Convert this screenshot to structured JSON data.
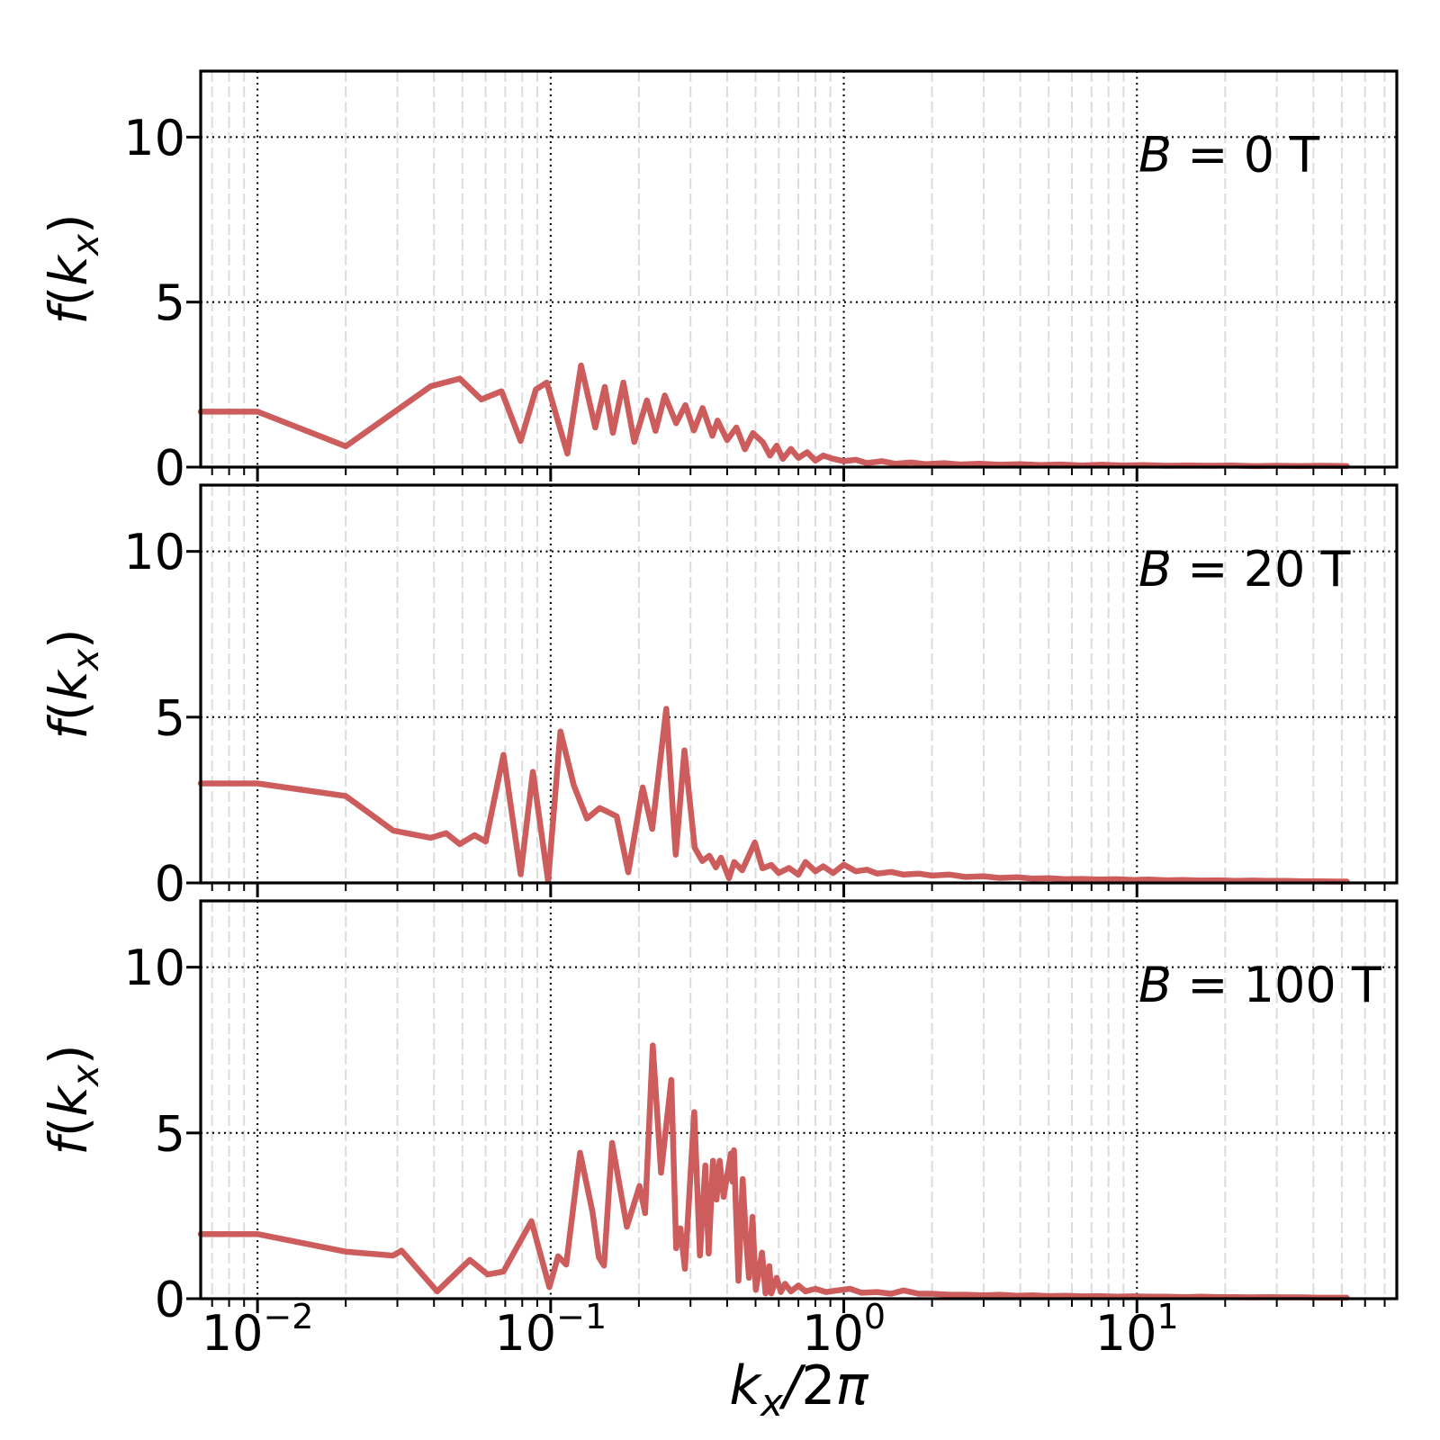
{
  "figure": {
    "background": "#ffffff",
    "line_color": "#cd5c5c",
    "major_grid_color": "#000000",
    "minor_grid_color": "#dcdcdc",
    "spine_color": "#000000",
    "text_color": "#000000"
  },
  "axes": {
    "xlabel": "k_x/2π",
    "xlabel_math": [
      {
        "t": "k",
        "i": true
      },
      {
        "t": "x",
        "i": true,
        "sub": true
      },
      {
        "t": "/",
        "i": true
      },
      {
        "t": "2",
        "i": false
      },
      {
        "t": "π",
        "i": true
      }
    ],
    "ylabel": "f(k_x)",
    "ylabel_math": [
      {
        "t": "f",
        "i": true
      },
      {
        "t": "(",
        "i": false
      },
      {
        "t": "k",
        "i": true
      },
      {
        "t": "x",
        "i": true,
        "sub": true
      },
      {
        "t": ")",
        "i": false
      }
    ],
    "x_scale": "log",
    "xlim": [
      0.0064,
      77
    ],
    "ylim": [
      0,
      12
    ],
    "x_tick_exponents": [
      -2,
      -1,
      0,
      1
    ],
    "x_tick_labels": [
      "10⁻²",
      "10⁻¹",
      "10⁰",
      "10¹"
    ],
    "y_ticks": [
      0,
      5,
      10
    ]
  },
  "panels": [
    {
      "label": "B = 0 T",
      "label_math": [
        {
          "t": "B",
          "i": true
        },
        {
          "t": " = 0 T",
          "i": false
        }
      ]
    },
    {
      "label": "B = 20 T",
      "label_math": [
        {
          "t": "B",
          "i": true
        },
        {
          "t": " = 20 T",
          "i": false
        }
      ]
    },
    {
      "label": "B = 100 T",
      "label_math": [
        {
          "t": "B",
          "i": true
        },
        {
          "t": " = 100 T",
          "i": false
        }
      ]
    }
  ],
  "chart_data": {
    "type": "line",
    "title": "",
    "xlabel": "k_x/2π",
    "ylabel": "f(k_x)",
    "x_scale": "log",
    "xlim": [
      0.0064,
      77
    ],
    "ylim": [
      0,
      12
    ],
    "y_ticks": [
      0,
      5,
      10
    ],
    "x_major_ticks": [
      0.01,
      0.1,
      1,
      10
    ],
    "grid": {
      "major": "black dotted",
      "minor": "light gray dashed vertical"
    },
    "legend_position": "none",
    "series": [
      {
        "name": "B = 0 T",
        "color": "#cd5c5c",
        "points": [
          [
            0.0064,
            1.68
          ],
          [
            0.01,
            1.68
          ],
          [
            0.02,
            0.63
          ],
          [
            0.039,
            2.45
          ],
          [
            0.049,
            2.68
          ],
          [
            0.058,
            2.05
          ],
          [
            0.068,
            2.3
          ],
          [
            0.079,
            0.79
          ],
          [
            0.089,
            2.35
          ],
          [
            0.097,
            2.56
          ],
          [
            0.114,
            0.41
          ],
          [
            0.127,
            3.08
          ],
          [
            0.142,
            1.2
          ],
          [
            0.153,
            2.43
          ],
          [
            0.163,
            1.04
          ],
          [
            0.177,
            2.56
          ],
          [
            0.193,
            0.76
          ],
          [
            0.213,
            2.02
          ],
          [
            0.228,
            1.1
          ],
          [
            0.245,
            2.17
          ],
          [
            0.268,
            1.33
          ],
          [
            0.288,
            1.88
          ],
          [
            0.308,
            1.11
          ],
          [
            0.33,
            1.79
          ],
          [
            0.356,
            0.95
          ],
          [
            0.371,
            1.41
          ],
          [
            0.4,
            0.82
          ],
          [
            0.43,
            1.2
          ],
          [
            0.46,
            0.54
          ],
          [
            0.49,
            1.03
          ],
          [
            0.53,
            0.75
          ],
          [
            0.56,
            0.35
          ],
          [
            0.59,
            0.65
          ],
          [
            0.62,
            0.25
          ],
          [
            0.66,
            0.55
          ],
          [
            0.7,
            0.28
          ],
          [
            0.75,
            0.45
          ],
          [
            0.8,
            0.2
          ],
          [
            0.85,
            0.35
          ],
          [
            0.92,
            0.25
          ],
          [
            1.0,
            0.18
          ],
          [
            1.1,
            0.22
          ],
          [
            1.2,
            0.12
          ],
          [
            1.35,
            0.18
          ],
          [
            1.5,
            0.1
          ],
          [
            1.7,
            0.14
          ],
          [
            1.9,
            0.09
          ],
          [
            2.2,
            0.12
          ],
          [
            2.5,
            0.08
          ],
          [
            2.9,
            0.1
          ],
          [
            3.4,
            0.07
          ],
          [
            4.0,
            0.09
          ],
          [
            4.7,
            0.06
          ],
          [
            5.5,
            0.08
          ],
          [
            6.5,
            0.05
          ],
          [
            7.6,
            0.07
          ],
          [
            9.0,
            0.05
          ],
          [
            10.5,
            0.06
          ],
          [
            12.5,
            0.04
          ],
          [
            15,
            0.05
          ],
          [
            18,
            0.04
          ],
          [
            21,
            0.05
          ],
          [
            25,
            0.03
          ],
          [
            30,
            0.04
          ],
          [
            36,
            0.03
          ],
          [
            43,
            0.04
          ],
          [
            52,
            0.03
          ]
        ]
      },
      {
        "name": "B = 20 T",
        "color": "#cd5c5c",
        "points": [
          [
            0.0064,
            3.0
          ],
          [
            0.01,
            3.0
          ],
          [
            0.02,
            2.62
          ],
          [
            0.029,
            1.58
          ],
          [
            0.039,
            1.36
          ],
          [
            0.044,
            1.5
          ],
          [
            0.049,
            1.17
          ],
          [
            0.055,
            1.44
          ],
          [
            0.06,
            1.25
          ],
          [
            0.069,
            3.86
          ],
          [
            0.079,
            0.26
          ],
          [
            0.087,
            3.35
          ],
          [
            0.098,
            0.06
          ],
          [
            0.108,
            4.57
          ],
          [
            0.12,
            2.94
          ],
          [
            0.133,
            1.94
          ],
          [
            0.147,
            2.26
          ],
          [
            0.168,
            2.01
          ],
          [
            0.184,
            0.32
          ],
          [
            0.206,
            2.88
          ],
          [
            0.222,
            1.63
          ],
          [
            0.248,
            5.25
          ],
          [
            0.267,
            0.85
          ],
          [
            0.286,
            4.0
          ],
          [
            0.31,
            1.06
          ],
          [
            0.329,
            0.66
          ],
          [
            0.348,
            0.82
          ],
          [
            0.366,
            0.47
          ],
          [
            0.381,
            0.76
          ],
          [
            0.406,
            0.14
          ],
          [
            0.423,
            0.63
          ],
          [
            0.45,
            0.38
          ],
          [
            0.497,
            1.22
          ],
          [
            0.528,
            0.44
          ],
          [
            0.566,
            0.54
          ],
          [
            0.6,
            0.3
          ],
          [
            0.65,
            0.45
          ],
          [
            0.7,
            0.25
          ],
          [
            0.74,
            0.63
          ],
          [
            0.8,
            0.35
          ],
          [
            0.85,
            0.5
          ],
          [
            0.92,
            0.3
          ],
          [
            1.0,
            0.55
          ],
          [
            1.1,
            0.35
          ],
          [
            1.2,
            0.4
          ],
          [
            1.3,
            0.28
          ],
          [
            1.45,
            0.33
          ],
          [
            1.6,
            0.25
          ],
          [
            1.8,
            0.28
          ],
          [
            2.0,
            0.22
          ],
          [
            2.3,
            0.25
          ],
          [
            2.6,
            0.18
          ],
          [
            3.0,
            0.2
          ],
          [
            3.4,
            0.15
          ],
          [
            3.9,
            0.17
          ],
          [
            4.4,
            0.13
          ],
          [
            5.0,
            0.14
          ],
          [
            5.7,
            0.11
          ],
          [
            6.5,
            0.12
          ],
          [
            7.4,
            0.1
          ],
          [
            8.5,
            0.11
          ],
          [
            9.7,
            0.09
          ],
          [
            11,
            0.1
          ],
          [
            12.6,
            0.08
          ],
          [
            14.4,
            0.09
          ],
          [
            16.5,
            0.07
          ],
          [
            19,
            0.08
          ],
          [
            21.6,
            0.06
          ],
          [
            24.7,
            0.07
          ],
          [
            28,
            0.06
          ],
          [
            32,
            0.06
          ],
          [
            37,
            0.05
          ],
          [
            42,
            0.05
          ],
          [
            48,
            0.04
          ],
          [
            52,
            0.04
          ]
        ]
      },
      {
        "name": "B = 100 T",
        "color": "#cd5c5c",
        "points": [
          [
            0.0064,
            1.95
          ],
          [
            0.01,
            1.95
          ],
          [
            0.02,
            1.42
          ],
          [
            0.029,
            1.3
          ],
          [
            0.031,
            1.45
          ],
          [
            0.041,
            0.22
          ],
          [
            0.053,
            1.17
          ],
          [
            0.061,
            0.73
          ],
          [
            0.069,
            0.82
          ],
          [
            0.086,
            2.34
          ],
          [
            0.099,
            0.35
          ],
          [
            0.106,
            1.28
          ],
          [
            0.113,
            1.03
          ],
          [
            0.126,
            4.4
          ],
          [
            0.139,
            2.61
          ],
          [
            0.146,
            1.25
          ],
          [
            0.152,
            1.0
          ],
          [
            0.162,
            4.7
          ],
          [
            0.182,
            2.17
          ],
          [
            0.201,
            3.4
          ],
          [
            0.21,
            2.58
          ],
          [
            0.223,
            7.64
          ],
          [
            0.238,
            3.8
          ],
          [
            0.258,
            6.6
          ],
          [
            0.268,
            1.52
          ],
          [
            0.277,
            2.12
          ],
          [
            0.287,
            0.9
          ],
          [
            0.309,
            5.63
          ],
          [
            0.323,
            1.3
          ],
          [
            0.337,
            4.02
          ],
          [
            0.346,
            1.36
          ],
          [
            0.358,
            4.16
          ],
          [
            0.368,
            2.99
          ],
          [
            0.377,
            4.16
          ],
          [
            0.389,
            3.07
          ],
          [
            0.412,
            4.38
          ],
          [
            0.417,
            3.53
          ],
          [
            0.422,
            4.48
          ],
          [
            0.437,
            0.54
          ],
          [
            0.452,
            3.61
          ],
          [
            0.462,
            2.07
          ],
          [
            0.475,
            0.63
          ],
          [
            0.488,
            2.47
          ],
          [
            0.501,
            0.27
          ],
          [
            0.526,
            1.39
          ],
          [
            0.541,
            0.16
          ],
          [
            0.557,
            0.98
          ],
          [
            0.566,
            0.16
          ],
          [
            0.59,
            0.63
          ],
          [
            0.61,
            0.2
          ],
          [
            0.63,
            0.45
          ],
          [
            0.66,
            0.22
          ],
          [
            0.7,
            0.4
          ],
          [
            0.74,
            0.22
          ],
          [
            0.8,
            0.3
          ],
          [
            0.87,
            0.2
          ],
          [
            0.95,
            0.25
          ],
          [
            1.05,
            0.3
          ],
          [
            1.15,
            0.18
          ],
          [
            1.3,
            0.2
          ],
          [
            1.45,
            0.15
          ],
          [
            1.6,
            0.25
          ],
          [
            1.8,
            0.15
          ],
          [
            2.0,
            0.15
          ],
          [
            2.3,
            0.12
          ],
          [
            2.6,
            0.12
          ],
          [
            3.0,
            0.1
          ],
          [
            3.4,
            0.12
          ],
          [
            3.9,
            0.09
          ],
          [
            4.4,
            0.1
          ],
          [
            5.0,
            0.08
          ],
          [
            5.7,
            0.09
          ],
          [
            6.5,
            0.07
          ],
          [
            7.4,
            0.08
          ],
          [
            8.5,
            0.06
          ],
          [
            9.7,
            0.07
          ],
          [
            11,
            0.06
          ],
          [
            12.6,
            0.06
          ],
          [
            14.4,
            0.05
          ],
          [
            16.5,
            0.06
          ],
          [
            19,
            0.05
          ],
          [
            21.6,
            0.05
          ],
          [
            24.7,
            0.04
          ],
          [
            28,
            0.05
          ],
          [
            32,
            0.04
          ],
          [
            37,
            0.04
          ],
          [
            42,
            0.03
          ],
          [
            48,
            0.03
          ],
          [
            52,
            0.03
          ]
        ]
      }
    ]
  }
}
